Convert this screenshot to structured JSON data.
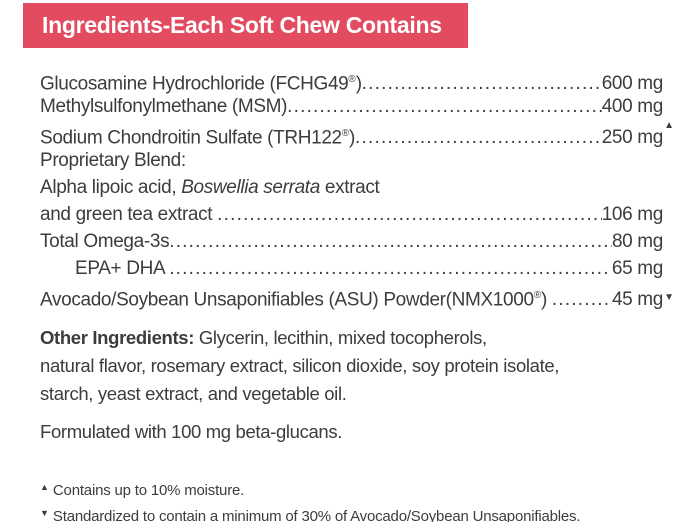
{
  "header": {
    "title": "Ingredients-Each Soft Chew Contains"
  },
  "colors": {
    "header_bg": "#e34b60",
    "header_text": "#ffffff",
    "body_text": "#3c3c3c"
  },
  "ingredient_rows": [
    {
      "parts": [
        {
          "t": "Glucosamine Hydrochloride (FCHG49"
        },
        {
          "t": "®",
          "style": "sup"
        },
        {
          "t": ")"
        }
      ],
      "dots": true,
      "amount": "600 mg"
    },
    {
      "parts": [
        {
          "t": "Methylsulfonylmethane (MSM)"
        }
      ],
      "dots": true,
      "amount": "400 mg"
    },
    {
      "parts": [
        {
          "t": "Sodium Chondroitin Sulfate (TRH122"
        },
        {
          "t": "®",
          "style": "sup"
        },
        {
          "t": ")"
        }
      ],
      "dots": true,
      "amount": "250 mg",
      "marker": "▲",
      "marker_style": "sup"
    },
    {
      "parts": [
        {
          "t": "Proprietary Blend:"
        }
      ]
    },
    {
      "parts": [
        {
          "t": "Alpha lipoic acid, "
        },
        {
          "t": "Boswellia serrata",
          "style": "italic"
        },
        {
          "t": " extract"
        }
      ]
    },
    {
      "parts": [
        {
          "t": "and green tea extract "
        }
      ],
      "dots": true,
      "amount": "106 mg"
    },
    {
      "parts": [
        {
          "t": "Total Omega-3s"
        }
      ],
      "dots": true,
      "amount": "80 mg"
    },
    {
      "parts": [
        {
          "t": "EPA+ DHA "
        }
      ],
      "dots": true,
      "amount": " 65 mg",
      "indent": true
    },
    {
      "parts": [
        {
          "t": "Avocado/Soybean Unsaponifiables (ASU) Powder(NMX1000"
        },
        {
          "t": "®",
          "style": "sup"
        },
        {
          "t": ") "
        }
      ],
      "dots": true,
      "amount": "45 mg",
      "marker": "▼",
      "marker_style": "sub"
    }
  ],
  "other_ingredients": {
    "label": "Other Ingredients:",
    "first_line_rest": " Glycerin, lecithin, mixed tocopherols,",
    "lines": [
      "natural flavor, rosemary extract, silicon dioxide, soy protein isolate,",
      "starch, yeast extract, and vegetable oil."
    ]
  },
  "formulated_note": "Formulated with 100 mg beta-glucans.",
  "footnotes": [
    {
      "marker": "▲",
      "text": "Contains up to 10% moisture."
    },
    {
      "marker": "▼",
      "text": "Standardized to contain a minimum of 30% of Avocado/Soybean Unsaponifiables."
    }
  ]
}
